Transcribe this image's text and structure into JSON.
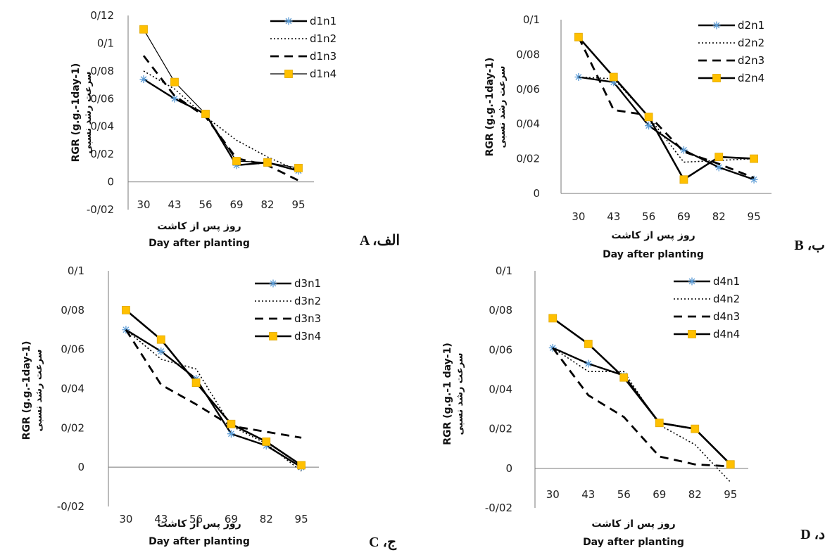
{
  "chart_data": [
    {
      "type": "line",
      "panel_label": "A ،الف",
      "categories": [
        "30",
        "43",
        "56",
        "69",
        "82",
        "95"
      ],
      "y_ticks": [
        "0/12",
        "0/1",
        "0/08",
        "0/06",
        "0/04",
        "0/02",
        "0",
        "-0/02"
      ],
      "ylim": [
        -0.02,
        0.12
      ],
      "xlabel_fa": "روز پس از کاشت",
      "xlabel_en": "Day after planting",
      "ylabel_en": "RGR (g.g.-1day-1)",
      "ylabel_fa": "سرعت رشد نسبی",
      "legend_position": "top-right",
      "series": [
        {
          "name": "d1n1",
          "style": "solid-star",
          "values": [
            0.074,
            0.06,
            0.049,
            0.012,
            0.014,
            0.008
          ]
        },
        {
          "name": "d1n2",
          "style": "dotted",
          "values": [
            0.08,
            0.067,
            0.047,
            0.03,
            0.018,
            0.008
          ]
        },
        {
          "name": "d1n3",
          "style": "dashed",
          "values": [
            0.091,
            0.062,
            0.047,
            0.017,
            0.012,
            0.001
          ]
        },
        {
          "name": "d1n4",
          "style": "thin-square",
          "values": [
            0.11,
            0.072,
            0.049,
            0.015,
            0.014,
            0.01
          ]
        }
      ]
    },
    {
      "type": "line",
      "panel_label": "B ،ب",
      "categories": [
        "30",
        "43",
        "56",
        "69",
        "82",
        "95"
      ],
      "y_ticks": [
        "0/1",
        "0/08",
        "0/06",
        "0/04",
        "0/02",
        "0"
      ],
      "ylim": [
        0,
        0.1
      ],
      "xlabel_fa": "روز پس از کاشت",
      "xlabel_en": "Day after planting",
      "ylabel_en": "RGR (g.g.-1day-1)",
      "ylabel_fa": "سرعت رشد نسبی",
      "legend_position": "top-right",
      "series": [
        {
          "name": "d2n1",
          "style": "solid-star",
          "values": [
            0.067,
            0.064,
            0.039,
            0.025,
            0.015,
            0.008
          ]
        },
        {
          "name": "d2n2",
          "style": "dotted",
          "values": [
            0.067,
            0.066,
            0.044,
            0.018,
            0.019,
            0.02
          ]
        },
        {
          "name": "d2n3",
          "style": "dashed",
          "values": [
            0.09,
            0.048,
            0.045,
            0.024,
            0.017,
            0.009
          ]
        },
        {
          "name": "d2n4",
          "style": "solid-square",
          "values": [
            0.09,
            0.067,
            0.044,
            0.008,
            0.021,
            0.02
          ]
        }
      ]
    },
    {
      "type": "line",
      "panel_label": "C ،ج",
      "categories": [
        "30",
        "43",
        "56",
        "69",
        "82",
        "95"
      ],
      "y_ticks": [
        "0/1",
        "0/08",
        "0/06",
        "0/04",
        "0/02",
        "0",
        "-0/02"
      ],
      "ylim": [
        -0.02,
        0.1
      ],
      "xlabel_fa": "روز پس از کاشت",
      "xlabel_en": "Day after planting",
      "ylabel_en": "RGR (g.g.-1day-1)",
      "ylabel_fa": "سرعت رشد نسبی",
      "legend_position": "top-right",
      "series": [
        {
          "name": "d3n1",
          "style": "solid-star",
          "values": [
            0.07,
            0.059,
            0.045,
            0.017,
            0.011,
            0.0
          ]
        },
        {
          "name": "d3n2",
          "style": "dotted",
          "values": [
            0.07,
            0.055,
            0.05,
            0.021,
            0.012,
            -0.002
          ]
        },
        {
          "name": "d3n3",
          "style": "dashed",
          "values": [
            0.07,
            0.042,
            0.032,
            0.021,
            0.018,
            0.015
          ]
        },
        {
          "name": "d3n4",
          "style": "solid-square",
          "values": [
            0.08,
            0.065,
            0.043,
            0.022,
            0.013,
            0.001
          ]
        }
      ]
    },
    {
      "type": "line",
      "panel_label": "D ،د",
      "categories": [
        "30",
        "43",
        "56",
        "69",
        "82",
        "95"
      ],
      "y_ticks": [
        "0/1",
        "0/08",
        "0/06",
        "0/04",
        "0/02",
        "0",
        "-0/02"
      ],
      "ylim": [
        -0.02,
        0.1
      ],
      "xlabel_fa": "روز پس از کاشت",
      "xlabel_en": "Day after planting",
      "ylabel_en": "RGR (g.g.-1 day-1)",
      "ylabel_fa": "سرعت رشد نسبی",
      "legend_position": "top-right",
      "series": [
        {
          "name": "d4n1",
          "style": "solid-star",
          "values": [
            0.061,
            0.053,
            0.047,
            0.023,
            0.02,
            0.002
          ]
        },
        {
          "name": "d4n2",
          "style": "dotted",
          "values": [
            0.061,
            0.049,
            0.049,
            0.022,
            0.012,
            -0.007
          ]
        },
        {
          "name": "d4n3",
          "style": "dashed",
          "values": [
            0.061,
            0.037,
            0.026,
            0.006,
            0.002,
            0.001
          ]
        },
        {
          "name": "d4n4",
          "style": "solid-square",
          "values": [
            0.076,
            0.063,
            0.046,
            0.023,
            0.02,
            0.002
          ]
        }
      ]
    }
  ]
}
